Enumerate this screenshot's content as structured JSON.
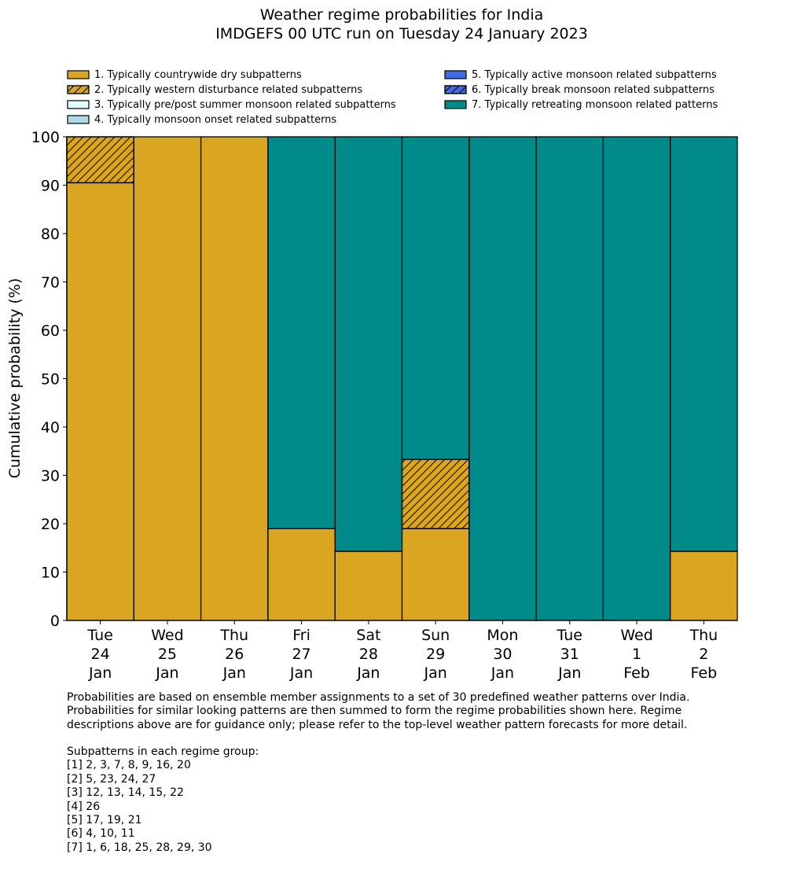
{
  "title": {
    "line1": "Weather regime probabilities for India",
    "line2": "IMDGEFS 00 UTC run on Tuesday 24 January 2023"
  },
  "legend": {
    "placement": "top",
    "items": [
      {
        "label": "1. Typically countrywide dry subpatterns",
        "color": "#DAA520",
        "hatch": false
      },
      {
        "label": "2. Typically western disturbance related subpatterns",
        "color": "#DAA520",
        "hatch": true
      },
      {
        "label": "3. Typically pre/post summer monsoon related subpatterns",
        "color": "#E0FFFF",
        "hatch": false
      },
      {
        "label": "4. Typically monsoon onset related subpatterns",
        "color": "#ADD8E6",
        "hatch": false
      },
      {
        "label": "5. Typically active monsoon related subpatterns",
        "color": "#4169E1",
        "hatch": false
      },
      {
        "label": "6. Typically break monsoon related subpatterns",
        "color": "#4169E1",
        "hatch": true
      },
      {
        "label": "7. Typically retreating monsoon related patterns",
        "color": "#008B8B",
        "hatch": false
      }
    ]
  },
  "chart_data": {
    "type": "bar",
    "stacked": true,
    "title": "Weather regime probabilities for India\nIMDGEFS 00 UTC run on Tuesday 24 January 2023",
    "xlabel": "",
    "ylabel": "Cumulative probability (%)",
    "ylim": [
      0,
      100
    ],
    "yticks": [
      0,
      10,
      20,
      30,
      40,
      50,
      60,
      70,
      80,
      90,
      100
    ],
    "grid": false,
    "categories": [
      [
        "Tue",
        "24",
        "Jan"
      ],
      [
        "Wed",
        "25",
        "Jan"
      ],
      [
        "Thu",
        "26",
        "Jan"
      ],
      [
        "Fri",
        "27",
        "Jan"
      ],
      [
        "Sat",
        "28",
        "Jan"
      ],
      [
        "Sun",
        "29",
        "Jan"
      ],
      [
        "Mon",
        "30",
        "Jan"
      ],
      [
        "Tue",
        "31",
        "Jan"
      ],
      [
        "Wed",
        "1",
        "Feb"
      ],
      [
        "Thu",
        "2",
        "Feb"
      ]
    ],
    "series": [
      {
        "name": "1. Typically countrywide dry subpatterns",
        "color": "#DAA520",
        "hatch": false,
        "values": [
          90.5,
          100,
          100,
          19.0,
          14.3,
          19.0,
          0,
          0,
          0,
          14.3
        ]
      },
      {
        "name": "2. Typically western disturbance related subpatterns",
        "color": "#DAA520",
        "hatch": true,
        "values": [
          9.5,
          0,
          0,
          0,
          0,
          14.3,
          0,
          0,
          0,
          0
        ]
      },
      {
        "name": "3. Typically pre/post summer monsoon related subpatterns",
        "color": "#E0FFFF",
        "hatch": false,
        "values": [
          0,
          0,
          0,
          0,
          0,
          0,
          0,
          0,
          0,
          0
        ]
      },
      {
        "name": "4. Typically monsoon onset related subpatterns",
        "color": "#ADD8E6",
        "hatch": false,
        "values": [
          0,
          0,
          0,
          0,
          0,
          0,
          0,
          0,
          0,
          0
        ]
      },
      {
        "name": "5. Typically active monsoon related subpatterns",
        "color": "#4169E1",
        "hatch": false,
        "values": [
          0,
          0,
          0,
          0,
          0,
          0,
          0,
          0,
          0,
          0
        ]
      },
      {
        "name": "6. Typically break monsoon related subpatterns",
        "color": "#4169E1",
        "hatch": true,
        "values": [
          0,
          0,
          0,
          0,
          0,
          0,
          0,
          0,
          0,
          0
        ]
      },
      {
        "name": "7. Typically retreating monsoon related patterns",
        "color": "#008B8B",
        "hatch": false,
        "values": [
          0,
          0,
          0,
          81.0,
          85.7,
          66.7,
          100,
          100,
          100,
          85.7
        ]
      }
    ]
  },
  "notes": {
    "paragraph": [
      "Probabilities are based on ensemble member assignments to a set of 30 predefined weather patterns over India.",
      "Probabilities for similar looking patterns are then summed to form the regime probabilities shown here. Regime",
      "descriptions above are for guidance only; please refer to the top-level weather pattern forecasts for more detail."
    ],
    "groups_heading": "Subpatterns in each regime group:",
    "groups": [
      "[1] 2, 3, 7, 8, 9, 16, 20",
      "[2] 5, 23, 24, 27",
      "[3] 12, 13, 14, 15, 22",
      "[4] 26",
      "[5] 17, 19, 21",
      "[6] 4, 10, 11",
      "[7] 1, 6, 18, 25, 28, 29, 30"
    ]
  }
}
